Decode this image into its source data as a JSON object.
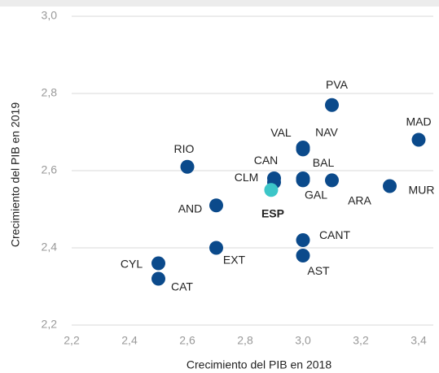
{
  "chart_data": {
    "type": "scatter",
    "xlabel": "Crecimiento del PIB  en 2018",
    "ylabel": "Crecimiento del PIB en 2019",
    "xlim": [
      2.2,
      3.4
    ],
    "ylim": [
      2.2,
      3.0
    ],
    "xticks": [
      {
        "value": 2.2,
        "label": "2,2"
      },
      {
        "value": 2.4,
        "label": "2,4"
      },
      {
        "value": 2.6,
        "label": "2,6"
      },
      {
        "value": 2.8,
        "label": "2,8"
      },
      {
        "value": 3.0,
        "label": "3,0"
      },
      {
        "value": 3.2,
        "label": "3,2"
      },
      {
        "value": 3.4,
        "label": "3,4"
      }
    ],
    "yticks": [
      {
        "value": 2.2,
        "label": "2,2"
      },
      {
        "value": 2.4,
        "label": "2,4"
      },
      {
        "value": 2.6,
        "label": "2,6"
      },
      {
        "value": 2.8,
        "label": "2,8"
      },
      {
        "value": 3.0,
        "label": "3,0"
      }
    ],
    "grid": true,
    "points": [
      {
        "label": "PVA",
        "x": 3.1,
        "y": 2.77,
        "color": "#0b4a8b"
      },
      {
        "label": "MAD",
        "x": 3.4,
        "y": 2.68,
        "color": "#0b4a8b"
      },
      {
        "label": "VAL",
        "x": 3.0,
        "y": 2.66,
        "color": "#0b4a8b"
      },
      {
        "label": "NAV",
        "x": 3.0,
        "y": 2.655,
        "color": "#0b4a8b"
      },
      {
        "label": "RIO",
        "x": 2.6,
        "y": 2.61,
        "color": "#0b4a8b"
      },
      {
        "label": "CAN",
        "x": 2.9,
        "y": 2.58,
        "color": "#0b4a8b"
      },
      {
        "label": "CLM",
        "x": 2.9,
        "y": 2.57,
        "color": "#0b4a8b"
      },
      {
        "label": "BAL",
        "x": 3.0,
        "y": 2.58,
        "color": "#0b4a8b"
      },
      {
        "label": "GAL",
        "x": 3.0,
        "y": 2.575,
        "color": "#0b4a8b"
      },
      {
        "label": "ARA",
        "x": 3.1,
        "y": 2.575,
        "color": "#0b4a8b"
      },
      {
        "label": "ESP",
        "x": 2.89,
        "y": 2.55,
        "color": "#3cc6c8",
        "bold": true
      },
      {
        "label": "MUR",
        "x": 3.3,
        "y": 2.56,
        "color": "#0b4a8b"
      },
      {
        "label": "AND",
        "x": 2.7,
        "y": 2.51,
        "color": "#0b4a8b"
      },
      {
        "label": "CANT",
        "x": 3.0,
        "y": 2.42,
        "color": "#0b4a8b"
      },
      {
        "label": "EXT",
        "x": 2.7,
        "y": 2.4,
        "color": "#0b4a8b"
      },
      {
        "label": "AST",
        "x": 3.0,
        "y": 2.38,
        "color": "#0b4a8b"
      },
      {
        "label": "CYL",
        "x": 2.5,
        "y": 2.36,
        "color": "#0b4a8b"
      },
      {
        "label": "CAT",
        "x": 2.5,
        "y": 2.32,
        "color": "#0b4a8b"
      }
    ]
  }
}
